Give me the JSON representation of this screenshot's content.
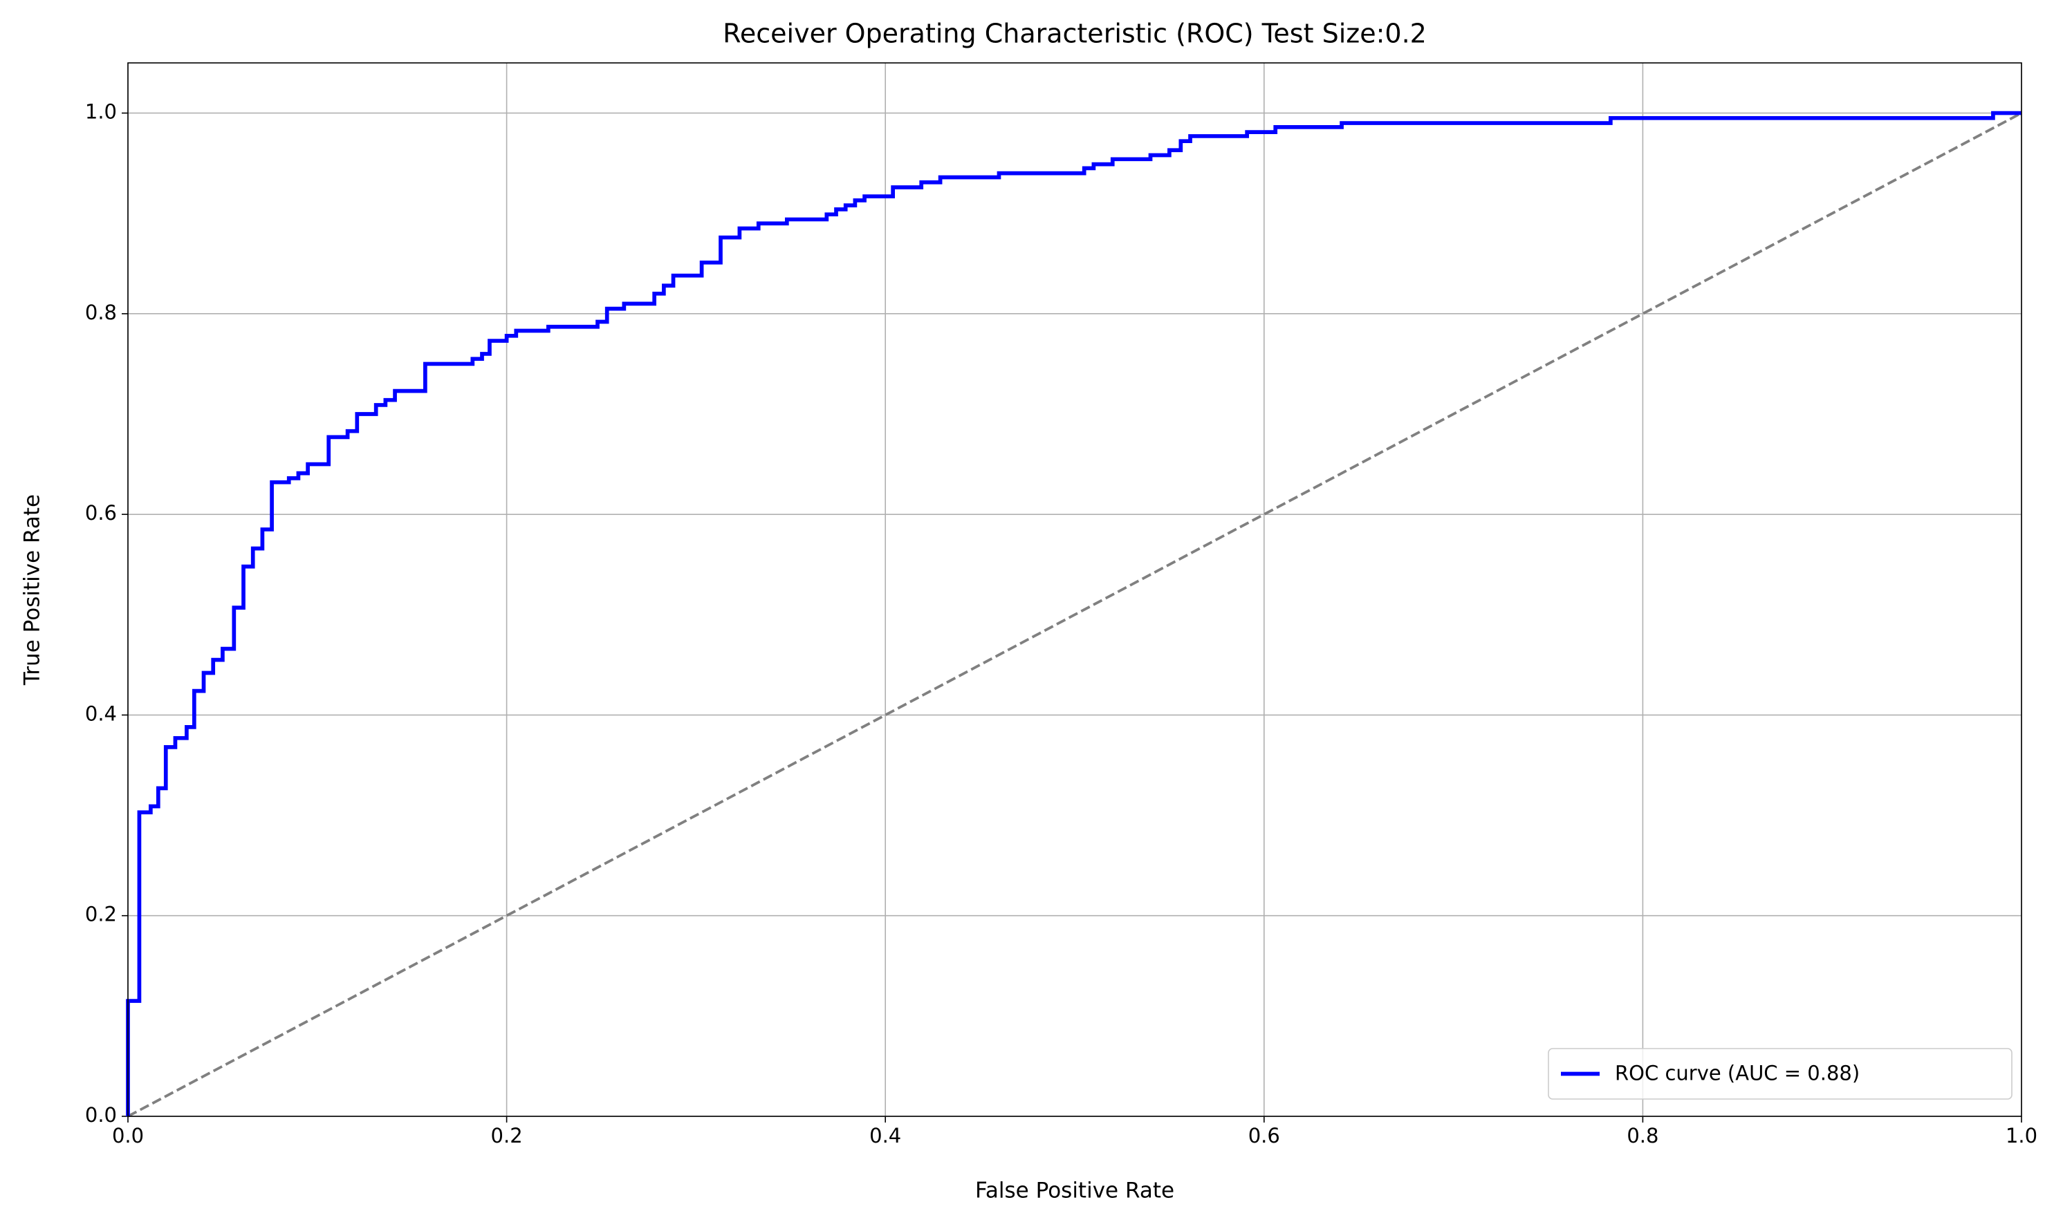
{
  "chart_data": {
    "type": "line",
    "title": "Receiver Operating Characteristic (ROC) Test Size:0.2",
    "x_label": "False Positive Rate",
    "y_label": "True Positive Rate",
    "xlim": [
      0,
      1
    ],
    "ylim": [
      0,
      1.05
    ],
    "xticks": [
      {
        "value": 0,
        "label": "0.0"
      },
      0.2,
      0.4,
      0.6,
      0.8,
      {
        "value": 1,
        "label": "1.0"
      }
    ],
    "yticks": [
      {
        "value": 0,
        "label": "0.0"
      },
      0.2,
      0.4,
      0.6,
      0.8,
      {
        "value": 1,
        "label": "1.0"
      }
    ],
    "grid": true,
    "legend": "lower right",
    "series": [
      {
        "name": "ROC curve (AUC = 0.88)",
        "color": "#0000ff",
        "x": [
          0,
          0,
          0.006,
          0.006,
          0.012,
          0.012,
          0.016,
          0.016,
          0.02,
          0.02,
          0.025,
          0.025,
          0.031,
          0.031,
          0.035,
          0.035,
          0.04,
          0.04,
          0.045,
          0.045,
          0.05,
          0.05,
          0.056,
          0.056,
          0.061,
          0.061,
          0.066,
          0.066,
          0.071,
          0.071,
          0.076,
          0.076,
          0.085,
          0.085,
          0.09,
          0.09,
          0.095,
          0.095,
          0.106,
          0.106,
          0.116,
          0.116,
          0.121,
          0.121,
          0.131,
          0.131,
          0.136,
          0.136,
          0.141,
          0.141,
          0.157,
          0.157,
          0.182,
          0.182,
          0.187,
          0.187,
          0.191,
          0.191,
          0.2,
          0.2,
          0.205,
          0.205,
          0.222,
          0.222,
          0.248,
          0.248,
          0.253,
          0.253,
          0.262,
          0.262,
          0.278,
          0.278,
          0.283,
          0.283,
          0.288,
          0.288,
          0.303,
          0.303,
          0.313,
          0.313,
          0.323,
          0.323,
          0.333,
          0.333,
          0.348,
          0.348,
          0.369,
          0.369,
          0.374,
          0.374,
          0.379,
          0.379,
          0.384,
          0.384,
          0.389,
          0.389,
          0.404,
          0.404,
          0.419,
          0.419,
          0.429,
          0.429,
          0.46,
          0.46,
          0.505,
          0.505,
          0.51,
          0.51,
          0.52,
          0.52,
          0.54,
          0.54,
          0.55,
          0.55,
          0.556,
          0.556,
          0.561,
          0.561,
          0.591,
          0.591,
          0.606,
          0.606,
          0.641,
          0.641,
          0.783,
          0.783,
          0.985,
          0.985,
          1
        ],
        "values": [
          0,
          0.115,
          0.115,
          0.303,
          0.303,
          0.309,
          0.309,
          0.327,
          0.327,
          0.368,
          0.368,
          0.377,
          0.377,
          0.388,
          0.388,
          0.424,
          0.424,
          0.442,
          0.442,
          0.455,
          0.455,
          0.466,
          0.466,
          0.507,
          0.507,
          0.548,
          0.548,
          0.566,
          0.566,
          0.585,
          0.585,
          0.632,
          0.632,
          0.636,
          0.636,
          0.641,
          0.641,
          0.65,
          0.65,
          0.677,
          0.677,
          0.683,
          0.683,
          0.7,
          0.7,
          0.709,
          0.709,
          0.714,
          0.714,
          0.723,
          0.723,
          0.75,
          0.75,
          0.755,
          0.755,
          0.76,
          0.76,
          0.773,
          0.773,
          0.778,
          0.778,
          0.783,
          0.783,
          0.787,
          0.787,
          0.792,
          0.792,
          0.805,
          0.805,
          0.81,
          0.81,
          0.82,
          0.82,
          0.828,
          0.828,
          0.838,
          0.838,
          0.851,
          0.851,
          0.876,
          0.876,
          0.885,
          0.885,
          0.89,
          0.89,
          0.894,
          0.894,
          0.899,
          0.899,
          0.904,
          0.904,
          0.908,
          0.908,
          0.913,
          0.913,
          0.917,
          0.917,
          0.926,
          0.926,
          0.931,
          0.931,
          0.936,
          0.936,
          0.94,
          0.94,
          0.945,
          0.945,
          0.949,
          0.949,
          0.954,
          0.954,
          0.958,
          0.958,
          0.963,
          0.963,
          0.972,
          0.972,
          0.977,
          0.977,
          0.981,
          0.981,
          0.986,
          0.986,
          0.99,
          0.99,
          0.995,
          0.995,
          1,
          1
        ]
      }
    ],
    "reference_line": {
      "color": "#808080",
      "x": [
        0,
        1
      ],
      "y": [
        0,
        1
      ]
    }
  }
}
